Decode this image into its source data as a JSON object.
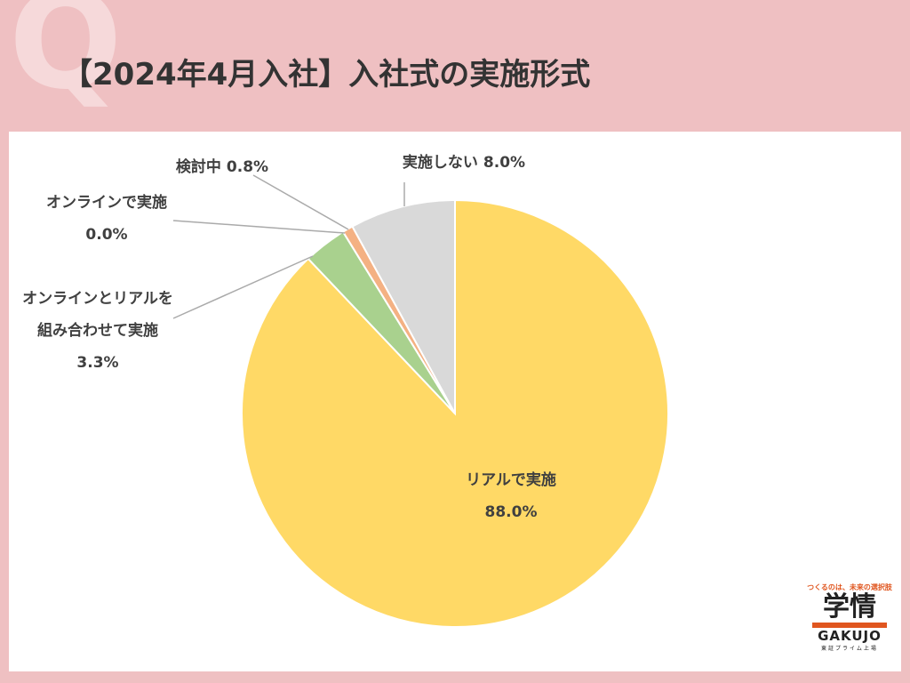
{
  "watermark": "Q",
  "chart_data": {
    "type": "pie",
    "title": "【2024年4月入社】入社式の実施形式",
    "categories": [
      "リアルで実施",
      "オンラインとリアルを組み合わせて実施",
      "オンラインで実施",
      "検討中",
      "実施しない"
    ],
    "values": [
      88.0,
      3.3,
      0.0,
      0.8,
      8.0
    ],
    "value_labels": [
      "88.0%",
      "3.3%",
      "0.0%",
      "0.8%",
      "8.0%"
    ],
    "colors": [
      "#ffd966",
      "#a9d18e",
      "#9dc3e6",
      "#f4b183",
      "#d9d9d9"
    ]
  },
  "logo": {
    "tagline": "つくるのは、未来の選択肢",
    "name": "学情",
    "roman": "GAKUJO",
    "listing": "東証プライム上場"
  }
}
